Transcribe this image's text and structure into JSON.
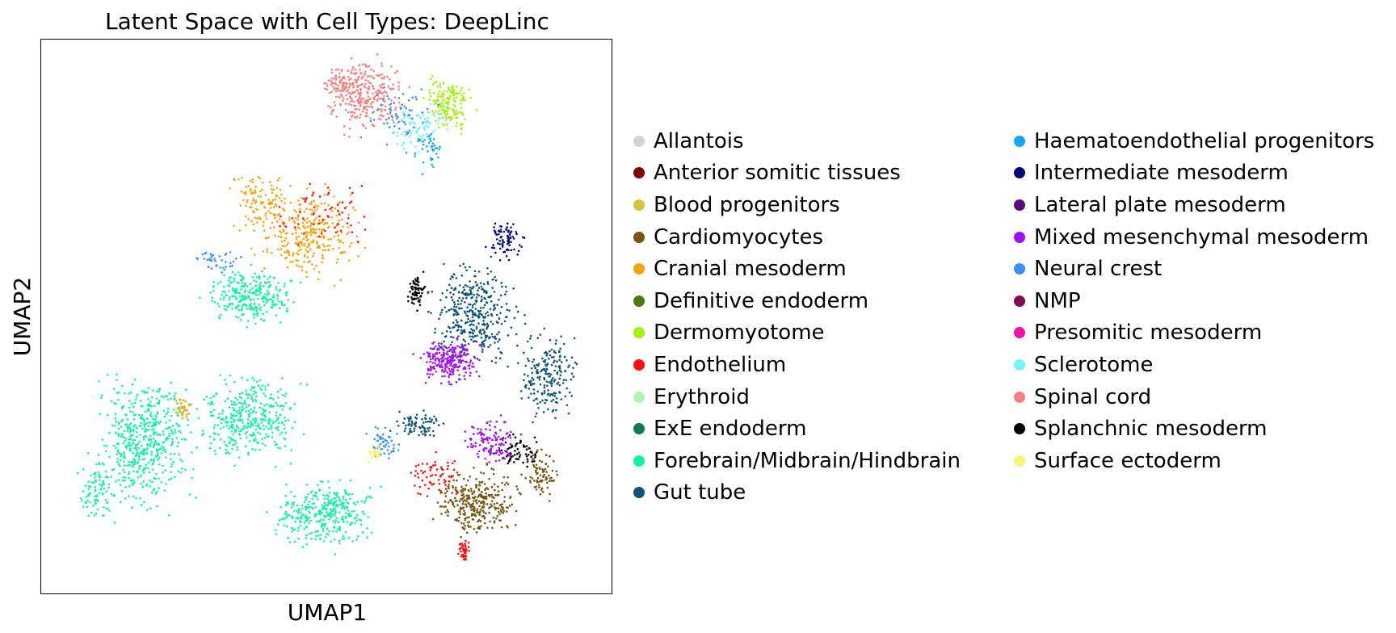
{
  "chart_data": {
    "type": "scatter",
    "title": "Latent Space with Cell Types: DeepLinc",
    "xlabel": "UMAP1",
    "ylabel": "UMAP2",
    "xlim": [
      0,
      1
    ],
    "ylim": [
      0,
      1
    ],
    "grid": false,
    "legend_placement": "right, outside plot, two columns",
    "series": [
      {
        "name": "Allantois",
        "color": "#d3d3d3"
      },
      {
        "name": "Anterior somitic tissues",
        "color": "#800000"
      },
      {
        "name": "Blood progenitors",
        "color": "#d4c63a"
      },
      {
        "name": "Cardiomyocytes",
        "color": "#7a5410"
      },
      {
        "name": "Cranial mesoderm",
        "color": "#f5a40e"
      },
      {
        "name": "Definitive endoderm",
        "color": "#4a7a10"
      },
      {
        "name": "Dermomyotome",
        "color": "#a2f210"
      },
      {
        "name": "Endothelium",
        "color": "#ff1010"
      },
      {
        "name": "Erythroid",
        "color": "#b0f5b0"
      },
      {
        "name": "ExE endoderm",
        "color": "#0a7a55"
      },
      {
        "name": "Forebrain/Midbrain/Hindbrain",
        "color": "#10f5a0"
      },
      {
        "name": "Gut tube",
        "color": "#0d5478"
      },
      {
        "name": "Haematoendothelial progenitors",
        "color": "#10a8f5"
      },
      {
        "name": "Intermediate mesoderm",
        "color": "#000a78"
      },
      {
        "name": "Lateral plate mesoderm",
        "color": "#5a0a80"
      },
      {
        "name": "Mixed mesenchymal mesoderm",
        "color": "#a010f5"
      },
      {
        "name": "Neural crest",
        "color": "#3a90f5"
      },
      {
        "name": "NMP",
        "color": "#800a55"
      },
      {
        "name": "Presomitic mesoderm",
        "color": "#f510a8"
      },
      {
        "name": "Sclerotome",
        "color": "#78f5f5"
      },
      {
        "name": "Spinal cord",
        "color": "#f58080"
      },
      {
        "name": "Splanchnic mesoderm",
        "color": "#000000"
      },
      {
        "name": "Surface ectoderm",
        "color": "#f5f578"
      }
    ]
  }
}
